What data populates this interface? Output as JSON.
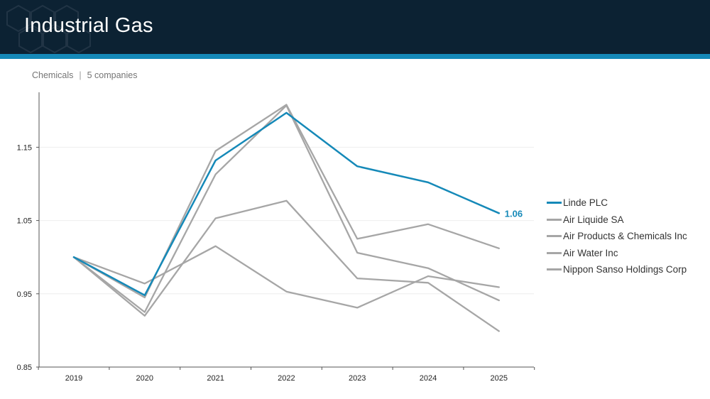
{
  "header": {
    "title": "Industrial Gas",
    "colors": {
      "background": "#0c2233",
      "stripe": "#1589b8"
    }
  },
  "subtitle": {
    "category": "Chemicals",
    "separator": "|",
    "count": "5 companies"
  },
  "chart_data": {
    "type": "line",
    "x": [
      "2019",
      "2020",
      "2021",
      "2022",
      "2023",
      "2024",
      "2025"
    ],
    "ylim": [
      0.85,
      1.25
    ],
    "yticks": [
      0.85,
      0.95,
      1.05,
      1.15
    ],
    "ytick_labels": [
      "0.85",
      "0.95",
      "1.05",
      "1.15"
    ],
    "grid": true,
    "legend_position": "right",
    "series": [
      {
        "name": "Linde PLC",
        "color": "#1589b8",
        "highlight": true,
        "values": [
          1.0,
          0.948,
          1.132,
          1.197,
          1.124,
          1.102,
          1.06
        ],
        "end_label": "1.06"
      },
      {
        "name": "Air Liquide SA",
        "color": "#a6a6a6",
        "values": [
          1.0,
          0.945,
          1.145,
          1.208,
          1.025,
          1.045,
          1.012
        ]
      },
      {
        "name": "Air Products & Chemicals Inc",
        "color": "#a6a6a6",
        "values": [
          1.0,
          0.92,
          1.053,
          1.077,
          0.971,
          0.965,
          0.899
        ]
      },
      {
        "name": "Air Water Inc",
        "color": "#a6a6a6",
        "values": [
          1.0,
          0.964,
          1.015,
          0.953,
          0.931,
          0.974,
          0.959
        ]
      },
      {
        "name": "Nippon Sanso Holdings Corp",
        "color": "#a6a6a6",
        "values": [
          1.0,
          0.925,
          1.113,
          1.207,
          1.006,
          0.985,
          0.941
        ]
      }
    ]
  }
}
